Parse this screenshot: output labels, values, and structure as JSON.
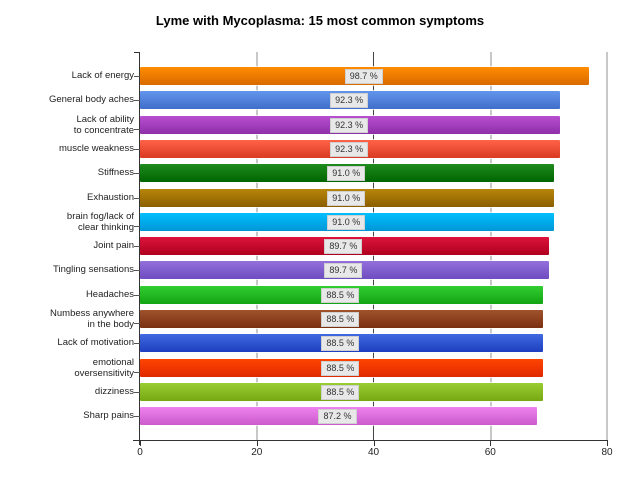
{
  "chart_data": {
    "type": "bar",
    "orientation": "horizontal",
    "title": "Lyme with Mycoplasma: 15 most common symptoms",
    "xlabel": "",
    "ylabel": "",
    "xlim": [
      0,
      80
    ],
    "xticks": [
      "0",
      "20",
      "40",
      "60",
      "80"
    ],
    "grid": true,
    "legend": "none",
    "categories": [
      "Lack of energy",
      "General body aches",
      "Lack of ability to concentrate",
      "muscle weakness",
      "Stiffness",
      "Exhaustion",
      "brain fog/lack of clear thinking",
      "Joint pain",
      "Tingling sensations",
      "Headaches",
      "Numbess anywhere in the body",
      "Lack of motivation",
      "emotional oversensitivity",
      "dizziness",
      "Sharp pains"
    ],
    "values": [
      77,
      72,
      72,
      72,
      71,
      71,
      71,
      70,
      70,
      69,
      69,
      69,
      69,
      69,
      68
    ],
    "data_labels": [
      "98.7 %",
      "92.3 %",
      "92.3 %",
      "92.3 %",
      "91.0 %",
      "91.0 %",
      "91.0 %",
      "89.7 %",
      "89.7 %",
      "88.5 %",
      "88.5 %",
      "88.5 %",
      "88.5 %",
      "88.5 %",
      "87.2 %"
    ]
  },
  "bars": [
    {
      "label1": "Lack of energy",
      "label2": "",
      "value": 77,
      "pct": "98.7 %",
      "c1": "#ff8c00",
      "c2": "#d96a00"
    },
    {
      "label1": "General body aches",
      "label2": "",
      "value": 72,
      "pct": "92.3 %",
      "c1": "#6495ed",
      "c2": "#3f6fc9"
    },
    {
      "label1": "Lack of ability",
      "label2": "to concentrate",
      "value": 72,
      "pct": "92.3 %",
      "c1": "#b84fd0",
      "c2": "#8e2fa8"
    },
    {
      "label1": "muscle weakness",
      "label2": "",
      "value": 72,
      "pct": "92.3 %",
      "c1": "#ff6347",
      "c2": "#d83a22"
    },
    {
      "label1": "Stiffness",
      "label2": "",
      "value": 71,
      "pct": "91.0 %",
      "c1": "#1e8c1e",
      "c2": "#006400"
    },
    {
      "label1": "Exhaustion",
      "label2": "",
      "value": 71,
      "pct": "91.0 %",
      "c1": "#b8860b",
      "c2": "#8b5e00"
    },
    {
      "label1": "brain fog/lack of",
      "label2": "clear thinking",
      "value": 71,
      "pct": "91.0 %",
      "c1": "#00bfff",
      "c2": "#0096d6"
    },
    {
      "label1": "Joint pain",
      "label2": "",
      "value": 70,
      "pct": "89.7 %",
      "c1": "#dc143c",
      "c2": "#b0001e"
    },
    {
      "label1": "Tingling sensations",
      "label2": "",
      "value": 70,
      "pct": "89.7 %",
      "c1": "#9370db",
      "c2": "#6f4cc0"
    },
    {
      "label1": "Headaches",
      "label2": "",
      "value": 69,
      "pct": "88.5 %",
      "c1": "#32cd32",
      "c2": "#12a512"
    },
    {
      "label1": "Numbess anywhere",
      "label2": "in the body",
      "value": 69,
      "pct": "88.5 %",
      "c1": "#a0522d",
      "c2": "#7a3010"
    },
    {
      "label1": "Lack of motivation",
      "label2": "",
      "value": 69,
      "pct": "88.5 %",
      "c1": "#4169e1",
      "c2": "#1e3fbf"
    },
    {
      "label1": "emotional",
      "label2": "oversensitivity",
      "value": 69,
      "pct": "88.5 %",
      "c1": "#ff4500",
      "c2": "#e02800"
    },
    {
      "label1": "dizziness",
      "label2": "",
      "value": 69,
      "pct": "88.5 %",
      "c1": "#9acd32",
      "c2": "#76a812"
    },
    {
      "label1": "Sharp pains",
      "label2": "",
      "value": 68,
      "pct": "87.2 %",
      "c1": "#ee82ee",
      "c2": "#cc5acc"
    }
  ]
}
